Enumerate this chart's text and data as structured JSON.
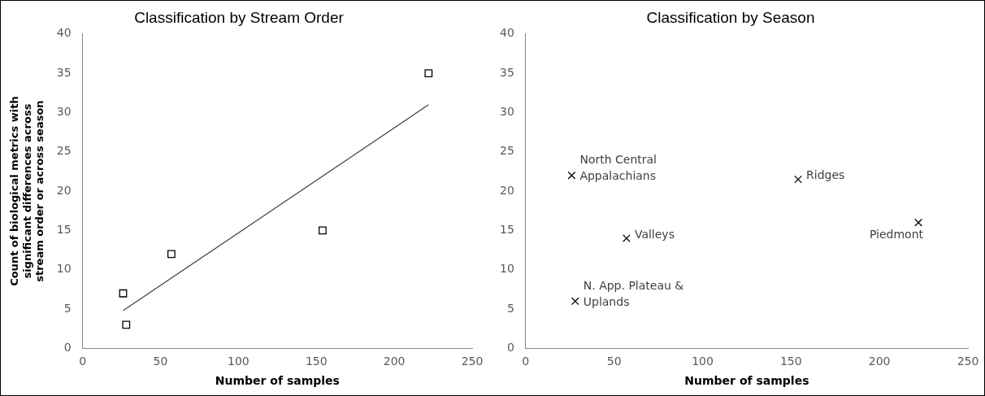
{
  "chart_data": [
    {
      "type": "scatter",
      "title": "Classification by Stream Order",
      "xlabel": "Number of samples",
      "ylabel": "Count of biological metrics with significant differences across stream order or across season",
      "xlim": [
        0,
        250
      ],
      "xticks": [
        0,
        50,
        100,
        150,
        200,
        250
      ],
      "ylim": [
        0,
        40
      ],
      "yticks": [
        0,
        5,
        10,
        15,
        20,
        25,
        30,
        35,
        40
      ],
      "grid": false,
      "legend": false,
      "series": [
        {
          "color": "#000000",
          "marker": "square",
          "x": [
            26,
            28,
            57,
            154,
            222
          ],
          "values": [
            7,
            3,
            12,
            15,
            35
          ]
        },
        {
          "type": "line",
          "color": "#404040",
          "marker": "none",
          "line_style": "solid",
          "x": [
            26,
            222
          ],
          "values": [
            4.8,
            31
          ]
        }
      ]
    },
    {
      "type": "scatter",
      "title": "Classification by Season",
      "xlabel": "Number of samples",
      "xlim": [
        0,
        250
      ],
      "xticks": [
        0,
        50,
        100,
        150,
        200,
        250
      ],
      "ylim": [
        0,
        40
      ],
      "yticks": [
        0,
        5,
        10,
        15,
        20,
        25,
        30,
        35,
        40
      ],
      "grid": false,
      "legend": false,
      "series": [
        {
          "color": "#000000",
          "marker": "cross",
          "x": [
            26,
            154,
            57,
            222,
            28
          ],
          "values": [
            22,
            21.5,
            14,
            16,
            6
          ]
        }
      ],
      "annotations": [
        {
          "text": "North Central Appalachians",
          "x": 26,
          "y": 22
        },
        {
          "text": "Ridges",
          "x": 154,
          "y": 21.5
        },
        {
          "text": "Valleys",
          "x": 57,
          "y": 14
        },
        {
          "text": "Piedmont",
          "x": 222,
          "y": 16
        },
        {
          "text": "N. App. Plateau & Uplands",
          "x": 28,
          "y": 6
        }
      ]
    }
  ]
}
